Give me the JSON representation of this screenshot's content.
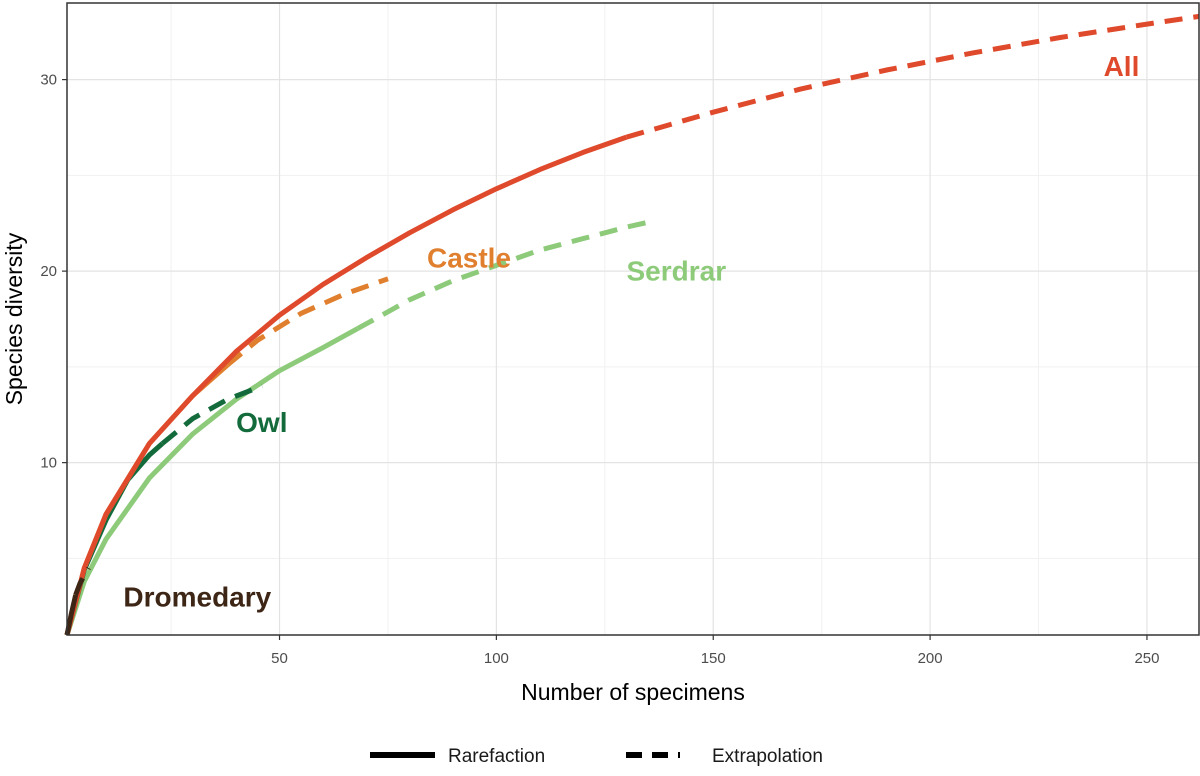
{
  "chart_data": {
    "type": "line",
    "title": "",
    "xlabel": "Number of specimens",
    "ylabel": "Species diversity",
    "xlim": [
      1,
      262
    ],
    "ylim": [
      1,
      34
    ],
    "x_ticks": [
      50,
      100,
      150,
      200,
      250
    ],
    "y_ticks": [
      10,
      20,
      30
    ],
    "grid": true,
    "legend": {
      "placement": "bottom",
      "entries": [
        {
          "label": "Rarefaction",
          "linetype": "solid"
        },
        {
          "label": "Extrapolation",
          "linetype": "dashed"
        }
      ]
    },
    "series": [
      {
        "name": "All",
        "color": "#e04a2c",
        "label_at": [
          240,
          30.2
        ],
        "rarefaction": [
          [
            1,
            1
          ],
          [
            5,
            4.5
          ],
          [
            10,
            7.3
          ],
          [
            20,
            11
          ],
          [
            30,
            13.5
          ],
          [
            40,
            15.8
          ],
          [
            50,
            17.7
          ],
          [
            60,
            19.3
          ],
          [
            70,
            20.7
          ],
          [
            80,
            22
          ],
          [
            90,
            23.2
          ],
          [
            100,
            24.3
          ],
          [
            110,
            25.3
          ],
          [
            120,
            26.2
          ],
          [
            130,
            27
          ]
        ],
        "extrapolation": [
          [
            130,
            27
          ],
          [
            150,
            28.3
          ],
          [
            170,
            29.5
          ],
          [
            190,
            30.5
          ],
          [
            210,
            31.4
          ],
          [
            230,
            32.2
          ],
          [
            250,
            32.9
          ],
          [
            262,
            33.3
          ]
        ]
      },
      {
        "name": "Castle",
        "color": "#e07f2e",
        "label_at": [
          84,
          20.2
        ],
        "rarefaction": [
          [
            1,
            1
          ],
          [
            5,
            4.5
          ],
          [
            10,
            7.3
          ],
          [
            20,
            11
          ],
          [
            30,
            13.5
          ],
          [
            38,
            15.1
          ]
        ],
        "extrapolation": [
          [
            38,
            15.1
          ],
          [
            45,
            16.4
          ],
          [
            55,
            17.8
          ],
          [
            65,
            18.8
          ],
          [
            75,
            19.6
          ]
        ]
      },
      {
        "name": "Owl",
        "color": "#136b3c",
        "label_at": [
          40,
          11.6
        ],
        "rarefaction": [
          [
            1,
            1
          ],
          [
            5,
            4.4
          ],
          [
            10,
            7
          ],
          [
            15,
            9.1
          ],
          [
            20,
            10.4
          ],
          [
            23,
            11
          ]
        ],
        "extrapolation": [
          [
            23,
            11
          ],
          [
            30,
            12.3
          ],
          [
            38,
            13.3
          ],
          [
            46,
            14
          ]
        ]
      },
      {
        "name": "Serdrar",
        "color": "#8dcb7b",
        "label_at": [
          130,
          19.5
        ],
        "rarefaction": [
          [
            1,
            1
          ],
          [
            5,
            3.8
          ],
          [
            10,
            6
          ],
          [
            20,
            9.2
          ],
          [
            30,
            11.5
          ],
          [
            40,
            13.3
          ],
          [
            50,
            14.8
          ],
          [
            60,
            16
          ],
          [
            68,
            17
          ]
        ],
        "extrapolation": [
          [
            68,
            17
          ],
          [
            80,
            18.5
          ],
          [
            90,
            19.5
          ],
          [
            100,
            20.3
          ],
          [
            110,
            21.1
          ],
          [
            120,
            21.7
          ],
          [
            130,
            22.3
          ],
          [
            136,
            22.6
          ]
        ]
      },
      {
        "name": "Dromedary",
        "color": "#3d2616",
        "label_at": [
          14,
          2.5
        ],
        "rarefaction": [
          [
            1,
            1
          ],
          [
            2,
            2.1
          ],
          [
            3,
            3.1
          ]
        ],
        "extrapolation": [
          [
            3,
            3.1
          ],
          [
            4,
            3.7
          ],
          [
            6,
            4.5
          ]
        ]
      }
    ]
  }
}
